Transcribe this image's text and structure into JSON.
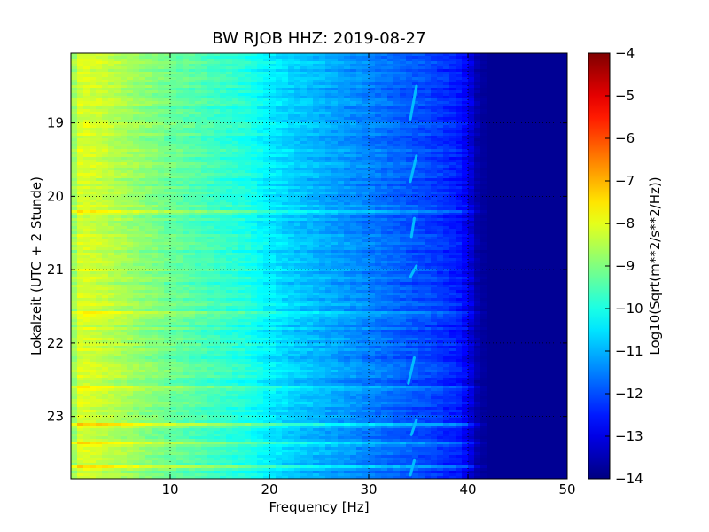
{
  "chart_data": {
    "type": "heatmap",
    "title": "BW RJOB HHZ: 2019-08-27",
    "xlabel": "Frequency [Hz]",
    "ylabel": "Lokalzeit (UTC + 2 Stunde)",
    "xlim": [
      0,
      50
    ],
    "ylim": [
      18.05,
      23.85
    ],
    "x_ticks": [
      10,
      20,
      30,
      40,
      50
    ],
    "x_tick_labels": [
      "10",
      "20",
      "30",
      "40",
      "50"
    ],
    "y_ticks": [
      19,
      20,
      21,
      22,
      23
    ],
    "y_tick_labels": [
      "19",
      "20",
      "21",
      "22",
      "23"
    ],
    "y_inverted": true,
    "grid": true,
    "colormap": "jet",
    "colorbar": {
      "label": "Log10(Sqrt(m**2/s**2/Hz))",
      "range": [
        -14,
        -4
      ],
      "ticks": [
        -4,
        -5,
        -6,
        -7,
        -8,
        -9,
        -10,
        -11,
        -12,
        -13,
        -14
      ],
      "tick_labels": [
        "−4",
        "−5",
        "−6",
        "−7",
        "−8",
        "−9",
        "−10",
        "−11",
        "−12",
        "−13",
        "−14"
      ]
    },
    "frequency_profile": {
      "x": [
        0,
        1,
        3,
        6,
        10,
        14,
        18,
        20,
        22,
        25,
        28,
        31,
        34,
        37,
        39,
        40,
        41,
        42,
        45,
        50
      ],
      "values": [
        -9.0,
        -8.1,
        -8.3,
        -8.7,
        -9.2,
        -9.6,
        -10.0,
        -10.4,
        -10.7,
        -11.0,
        -11.3,
        -11.6,
        -11.9,
        -12.2,
        -12.5,
        -12.9,
        -13.6,
        -13.8,
        -13.8,
        -13.8
      ]
    },
    "bright_bands": [
      {
        "time": 20.2,
        "strength": 1.0
      },
      {
        "time": 21.6,
        "strength": 0.6
      },
      {
        "time": 22.6,
        "strength": 0.6
      },
      {
        "time": 23.1,
        "strength": 1.0
      },
      {
        "time": 23.35,
        "strength": 0.6
      },
      {
        "time": 23.7,
        "strength": 0.7
      }
    ],
    "trace_line": {
      "points": [
        {
          "freq": 34.8,
          "time": 18.5
        },
        {
          "freq": 34.2,
          "time": 18.95
        },
        {
          "freq": 34.8,
          "time": 19.45
        },
        {
          "freq": 34.2,
          "time": 19.8
        },
        {
          "freq": 34.6,
          "time": 20.3
        },
        {
          "freq": 34.3,
          "time": 20.55
        },
        {
          "freq": 34.8,
          "time": 20.95
        },
        {
          "freq": 34.2,
          "time": 21.1
        },
        {
          "freq": 34.6,
          "time": 22.2
        },
        {
          "freq": 34.0,
          "time": 22.55
        },
        {
          "freq": 34.8,
          "time": 23.05
        },
        {
          "freq": 34.3,
          "time": 23.25
        },
        {
          "freq": 34.6,
          "time": 23.6
        },
        {
          "freq": 34.2,
          "time": 23.8
        }
      ],
      "value": -10.9
    }
  }
}
